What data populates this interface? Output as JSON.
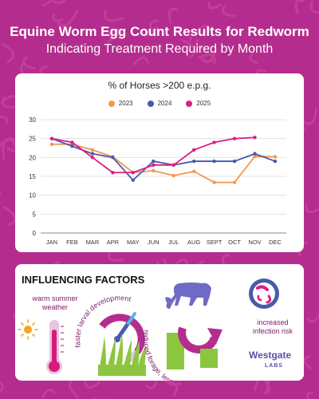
{
  "header": {
    "title": "Equine Worm Egg Count Results for Redworm",
    "subtitle": "Indicating Treatment Required by Month"
  },
  "colors": {
    "background": "#b42d8e",
    "card": "#ffffff",
    "series_2023": "#f2994a",
    "series_2024": "#4a5aa8",
    "series_2025": "#e01b84",
    "accent_purple": "#8a2080"
  },
  "chart_data": {
    "type": "line",
    "title": "% of Horses >200 e.p.g.",
    "xlabel": "",
    "ylabel": "",
    "categories": [
      "JAN",
      "FEB",
      "MAR",
      "APR",
      "MAY",
      "JUN",
      "JUL",
      "AUG",
      "SEPT",
      "OCT",
      "NOV",
      "DEC"
    ],
    "ylim": [
      0,
      30
    ],
    "yticks": [
      0,
      5,
      10,
      15,
      20,
      25,
      30
    ],
    "grid": true,
    "legend_position": "top-center",
    "series": [
      {
        "name": "2023",
        "color": "#f2994a",
        "values": [
          23.5,
          23.5,
          22,
          20.2,
          16,
          16.5,
          15.2,
          16.3,
          13.4,
          13.4,
          20.3,
          20.2
        ]
      },
      {
        "name": "2024",
        "color": "#4a5aa8",
        "values": [
          25,
          23,
          21,
          20,
          14,
          19,
          18,
          19,
          19,
          19,
          21,
          19
        ]
      },
      {
        "name": "2025",
        "color": "#e01b84",
        "values": [
          25,
          24,
          20,
          16,
          16,
          18,
          18,
          22,
          24,
          25,
          25.3,
          null
        ]
      }
    ]
  },
  "factors": {
    "heading": "INFLUENCING FACTORS",
    "warm_weather": "warm summer weather",
    "larval_development": "faster larval development",
    "reduced_forage": "reduced forage, less grazing rotation",
    "infection_risk": "increased infection risk",
    "icons": [
      "sun-icon",
      "thermometer-icon",
      "gauge-icon",
      "grass-icon",
      "horse-icon",
      "rotation-arrow-icon",
      "worm-petri-icon"
    ]
  },
  "logo": {
    "name": "Westgate",
    "sub": "LABS"
  }
}
